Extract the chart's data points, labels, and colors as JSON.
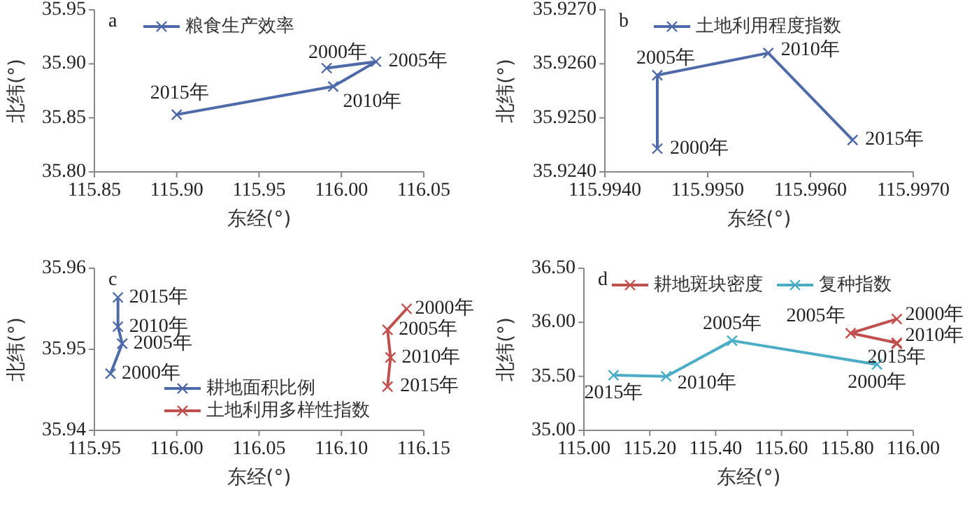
{
  "chart_data": [
    {
      "type": "line",
      "xlabel": "东经(°)",
      "ylabel": "北纬(°)",
      "marker": "cross",
      "legend": "top",
      "grid": false,
      "xlim": [
        115.85,
        116.05
      ],
      "xticks": [
        115.85,
        {
          "value": 115.9,
          "label": "115.90"
        },
        115.95,
        {
          "value": 116,
          "label": "116.00"
        },
        116.05
      ],
      "ylim": [
        35.8,
        35.95
      ],
      "yticks": [
        {
          "value": 35.8,
          "label": "35.80"
        },
        35.85,
        {
          "value": 35.9,
          "label": "35.90"
        },
        35.95
      ],
      "series": [
        {
          "name": "粮食生产效率",
          "color": "#4f6aa8",
          "x": [
            115.991,
            116.021,
            115.995,
            115.9
          ],
          "values": [
            35.896,
            35.902,
            35.879,
            35.853
          ]
        }
      ],
      "annotations": [
        "a",
        {
          "text": "2000年",
          "x": 115.991,
          "y": 35.896
        },
        {
          "text": "2005年",
          "x": 116.021,
          "y": 35.902
        },
        {
          "text": "2010年",
          "x": 115.995,
          "y": 35.879
        },
        {
          "text": "2015年",
          "x": 115.9,
          "y": 35.853
        }
      ]
    },
    {
      "type": "line",
      "xlabel": "东经(°)",
      "ylabel": "北纬(°)",
      "marker": "cross",
      "legend": "top",
      "grid": false,
      "xlim": [
        115.994,
        115.997
      ],
      "xticks": [
        {
          "value": 115.994,
          "label": "115.9940"
        },
        {
          "value": 115.995,
          "label": "115.9950"
        },
        {
          "value": 115.996,
          "label": "115.9960"
        },
        {
          "value": 115.997,
          "label": "115.9970"
        }
      ],
      "ylim": [
        35.924,
        35.927
      ],
      "yticks": [
        {
          "value": 35.924,
          "label": "35.9240"
        },
        {
          "value": 35.925,
          "label": "35.9250"
        },
        {
          "value": 35.926,
          "label": "35.9260"
        },
        {
          "value": 35.927,
          "label": "35.9270"
        }
      ],
      "series": [
        {
          "name": "土地利用程度指数",
          "color": "#4f6aa8",
          "x": [
            115.99451,
            115.99451,
            115.99559,
            115.99641
          ],
          "values": [
            35.92443,
            35.92579,
            35.9262,
            35.92459
          ]
        }
      ],
      "annotations": [
        "b",
        {
          "text": "2000年",
          "x": 115.99451,
          "y": 35.92443
        },
        {
          "text": "2005年",
          "x": 115.99451,
          "y": 35.92579
        },
        {
          "text": "2010年",
          "x": 115.99559,
          "y": 35.9262
        },
        {
          "text": "2015年",
          "x": 115.99641,
          "y": 35.92459
        }
      ]
    },
    {
      "type": "line",
      "xlabel": "东经(°)",
      "ylabel": "北纬(°)",
      "marker": "cross",
      "legend": "bottom",
      "grid": false,
      "xlim": [
        115.95,
        116.15
      ],
      "xticks": [
        115.95,
        {
          "value": 116,
          "label": "116.00"
        },
        116.05,
        {
          "value": 116.1,
          "label": "116.10"
        },
        116.15
      ],
      "ylim": [
        35.94,
        35.96
      ],
      "yticks": [
        35.94,
        35.95,
        35.96
      ],
      "series": [
        {
          "name": "耕地面积比例",
          "color": "#4f6aa8",
          "x": [
            115.9598,
            115.9669,
            115.9643,
            115.9643
          ],
          "values": [
            35.947,
            35.9507,
            35.9528,
            35.9564
          ]
        },
        {
          "name": "土地利用多样性指数",
          "color": "#c0504d",
          "x": [
            116.1396,
            116.128,
            116.1298,
            116.128
          ],
          "values": [
            35.955,
            35.9524,
            35.949,
            35.9454
          ]
        }
      ],
      "annotations": [
        "c",
        {
          "text": "2000年",
          "x": 115.9598,
          "y": 35.947
        },
        {
          "text": "2005年",
          "x": 115.9669,
          "y": 35.9507
        },
        {
          "text": "2010年",
          "x": 115.9643,
          "y": 35.9528
        },
        {
          "text": "2015年",
          "x": 115.9643,
          "y": 35.9564
        },
        {
          "text": "2000年",
          "x": 116.1396,
          "y": 35.955
        },
        {
          "text": "2005年",
          "x": 116.128,
          "y": 35.9524
        },
        {
          "text": "2010年",
          "x": 116.1298,
          "y": 35.949
        },
        {
          "text": "2015年",
          "x": 116.128,
          "y": 35.9454
        }
      ]
    },
    {
      "type": "line",
      "xlabel": "东经(°)",
      "ylabel": "北纬(°)",
      "marker": "cross",
      "legend": "top left",
      "grid": false,
      "xlim": [
        115,
        116
      ],
      "xticks": [
        {
          "value": 115,
          "label": "115.00"
        },
        {
          "value": 115.2,
          "label": "115.20"
        },
        {
          "value": 115.4,
          "label": "115.40"
        },
        {
          "value": 115.6,
          "label": "115.60"
        },
        {
          "value": 115.8,
          "label": "115.80"
        },
        {
          "value": 116,
          "label": "116.00"
        }
      ],
      "ylim": [
        35,
        36.5
      ],
      "yticks": [
        {
          "value": 35,
          "label": "35.00"
        },
        {
          "value": 35.5,
          "label": "35.50"
        },
        {
          "value": 36,
          "label": "36.00"
        },
        {
          "value": 36.5,
          "label": "36.50"
        }
      ],
      "series": [
        {
          "name": "耕地斑块密度",
          "color": "#c0504d",
          "x": [
            115.95,
            115.81,
            115.95,
            115.95
          ],
          "values": [
            36.03,
            35.9,
            35.81,
            35.8
          ]
        },
        {
          "name": "复种指数",
          "color": "#4bacc6",
          "x": [
            115.89,
            115.45,
            115.25,
            115.09
          ],
          "values": [
            35.61,
            35.83,
            35.5,
            35.51
          ]
        }
      ],
      "annotations": [
        "d",
        {
          "text": "2000年",
          "x": 115.95,
          "y": 36.03
        },
        {
          "text": "2005年",
          "x": 115.81,
          "y": 35.9
        },
        {
          "text": "2010年",
          "x": 115.95,
          "y": 35.81
        },
        {
          "text": "2015年",
          "x": 115.95,
          "y": 35.8
        },
        {
          "text": "2000年",
          "x": 115.89,
          "y": 35.61
        },
        {
          "text": "2005年",
          "x": 115.45,
          "y": 35.83
        },
        {
          "text": "2010年",
          "x": 115.25,
          "y": 35.5
        },
        {
          "text": "2015年",
          "x": 115.09,
          "y": 35.51
        }
      ]
    }
  ]
}
